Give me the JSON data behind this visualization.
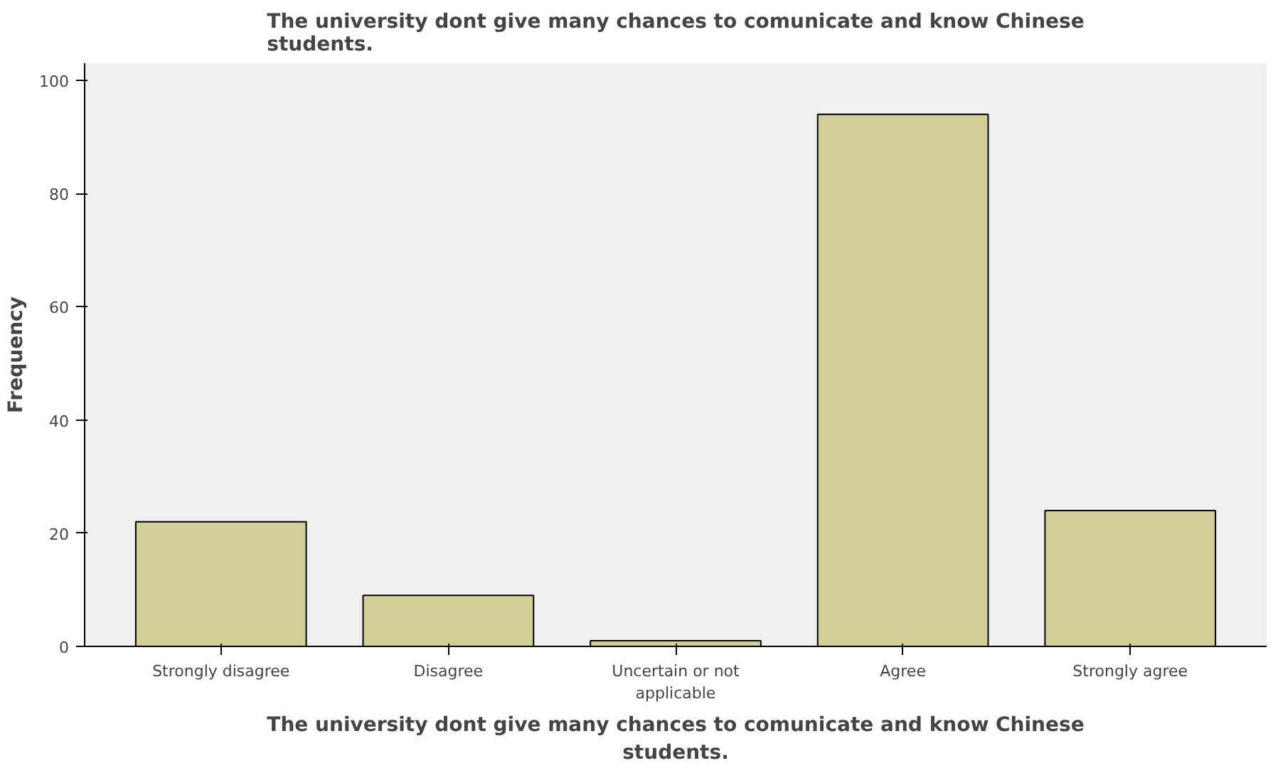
{
  "chart_data": {
    "type": "bar",
    "title": "The university dont give many chances to comunicate and know Chinese students.",
    "xlabel": "The university dont give many chances to comunicate and know Chinese students.",
    "ylabel": "Frequency",
    "categories": [
      "Strongly disagree",
      "Disagree",
      "Uncertain or not applicable",
      "Agree",
      "Strongly agree"
    ],
    "values": [
      22,
      9,
      1,
      94,
      24
    ],
    "color": "#d3ce98",
    "ylim": [
      0,
      103
    ],
    "yticks": [
      0,
      20,
      40,
      60,
      80,
      100
    ],
    "grid": false
  }
}
